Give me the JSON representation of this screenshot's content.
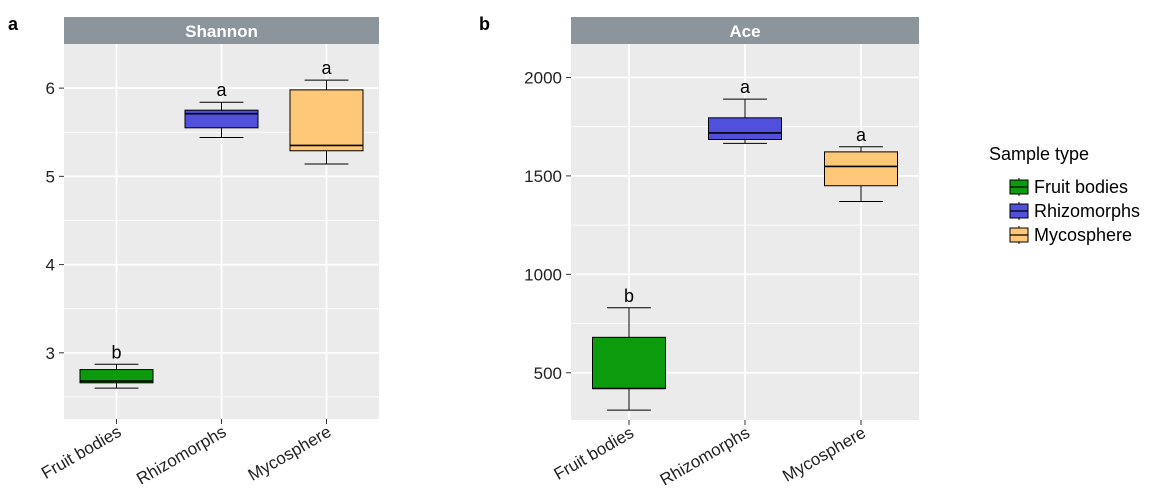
{
  "panels": [
    {
      "letter": "a"
    },
    {
      "letter": "b"
    }
  ],
  "legend": {
    "title": "Sample type",
    "items": [
      "Fruit bodies",
      "Rhizomorphs",
      "Mycosphere"
    ]
  },
  "colors": {
    "fruit_bodies": "#0c9b0c",
    "rhizomorphs": "#5050dc",
    "mycosphere": "#ffc878",
    "panel_bg": "#ebebeb",
    "strip_bg": "#8c949c",
    "grid": "#ffffff"
  },
  "chart_data": [
    {
      "type": "box",
      "title": "Shannon",
      "categories": [
        "Fruit bodies",
        "Rhizomorphs",
        "Mycosphere"
      ],
      "ylim": [
        2.25,
        6.5
      ],
      "yticks": [
        3,
        4,
        5,
        6
      ],
      "grid": true,
      "series": [
        {
          "name": "Fruit bodies",
          "min": 2.6,
          "q1": 2.66,
          "median": 2.68,
          "q3": 2.81,
          "max": 2.87,
          "label": "b"
        },
        {
          "name": "Rhizomorphs",
          "min": 5.44,
          "q1": 5.55,
          "median": 5.71,
          "q3": 5.75,
          "max": 5.84,
          "label": "a"
        },
        {
          "name": "Mycosphere",
          "min": 5.14,
          "q1": 5.29,
          "median": 5.35,
          "q3": 5.98,
          "max": 6.09,
          "label": "a"
        }
      ]
    },
    {
      "type": "box",
      "title": "Ace",
      "categories": [
        "Fruit bodies",
        "Rhizomorphs",
        "Mycosphere"
      ],
      "ylim": [
        260,
        2170
      ],
      "yticks": [
        500,
        1000,
        1500,
        2000
      ],
      "grid": true,
      "series": [
        {
          "name": "Fruit bodies",
          "min": 310,
          "q1": 420,
          "median": 420,
          "q3": 680,
          "max": 830,
          "label": "b"
        },
        {
          "name": "Rhizomorphs",
          "min": 1665,
          "q1": 1685,
          "median": 1718,
          "q3": 1795,
          "max": 1890,
          "label": "a"
        },
        {
          "name": "Mycosphere",
          "min": 1370,
          "q1": 1450,
          "median": 1548,
          "q3": 1622,
          "max": 1648,
          "label": "a"
        }
      ]
    }
  ]
}
